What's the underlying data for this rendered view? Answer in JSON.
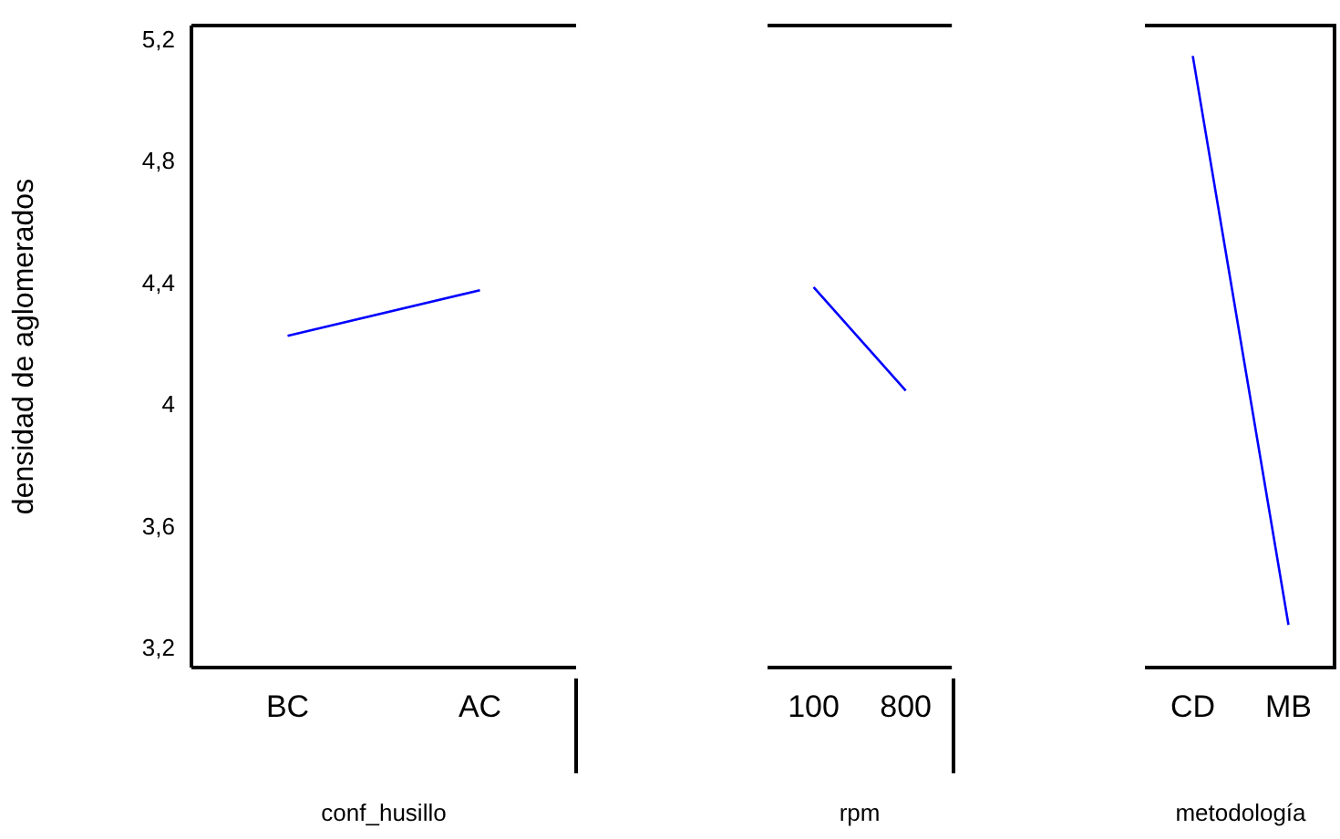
{
  "chart_data": [
    {
      "type": "line",
      "categories": [
        "BC",
        "AC"
      ],
      "values": [
        4.23,
        4.38
      ],
      "color": "#0000ff",
      "xlabel": "conf_husillo",
      "ylabel": "densidad de aglomerados",
      "ylim": [
        3.14,
        5.25
      ],
      "yticks": [
        {
          "value": 3.2,
          "label": "3,2"
        },
        {
          "value": 3.6,
          "label": "3,6"
        },
        4,
        {
          "value": 4.4,
          "label": "4,4"
        },
        {
          "value": 4.8,
          "label": "4,8"
        },
        {
          "value": 5.2,
          "label": "5,2"
        }
      ],
      "grid": false,
      "marker": "none"
    },
    {
      "type": "line",
      "categories": [
        "100",
        "800"
      ],
      "values": [
        4.39,
        4.05
      ],
      "color": "#0000ff",
      "xlabel": "rpm",
      "ylim": [
        3.14,
        5.25
      ],
      "grid": false,
      "marker": "none",
      "tick_labels": "x"
    },
    {
      "type": "line",
      "categories": [
        "CD",
        "MB"
      ],
      "values": [
        5.15,
        3.28
      ],
      "color": "#0000ff",
      "xlabel": "metodología",
      "ylim": [
        3.14,
        5.25
      ],
      "grid": false,
      "marker": "none",
      "tick_labels": "x"
    }
  ]
}
